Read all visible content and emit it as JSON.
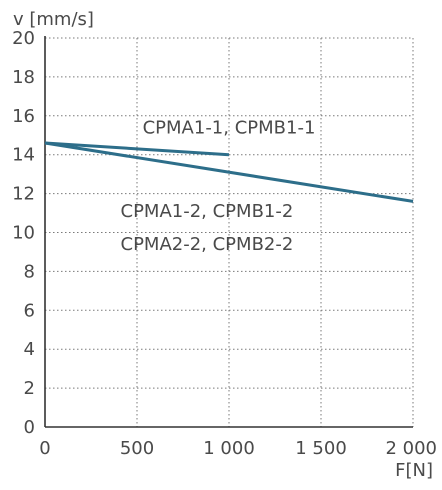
{
  "chart_data": {
    "type": "line",
    "xlabel": "F[N]",
    "ylabel": "v [mm/s]",
    "xlim": [
      0,
      2000
    ],
    "ylim": [
      0,
      20
    ],
    "x_ticks": [
      0,
      500,
      1000,
      1500,
      2000
    ],
    "x_tick_labels": [
      "0",
      "500",
      "1 000",
      "1 500",
      "2 000"
    ],
    "y_ticks": [
      0,
      2,
      4,
      6,
      8,
      10,
      12,
      14,
      16,
      18,
      20
    ],
    "y_tick_labels": [
      "0",
      "2",
      "4",
      "6",
      "8",
      "10",
      "12",
      "14",
      "16",
      "18",
      "20"
    ],
    "grid": true,
    "series": [
      {
        "x": [
          0,
          1000
        ],
        "y": [
          14.6,
          14.0
        ],
        "color": "#2d6e8a"
      },
      {
        "x": [
          0,
          2000
        ],
        "y": [
          14.6,
          11.6
        ],
        "color": "#2d6e8a"
      }
    ],
    "annotations": [
      {
        "text": "CPMA1-1, CPMB1-1",
        "x": 1000,
        "y": 15.1
      },
      {
        "text": "CPMA1-2, CPMB1-2",
        "x": 880,
        "y": 10.8
      },
      {
        "text": "CPMA2-2, CPMB2-2",
        "x": 880,
        "y": 9.1
      }
    ]
  }
}
